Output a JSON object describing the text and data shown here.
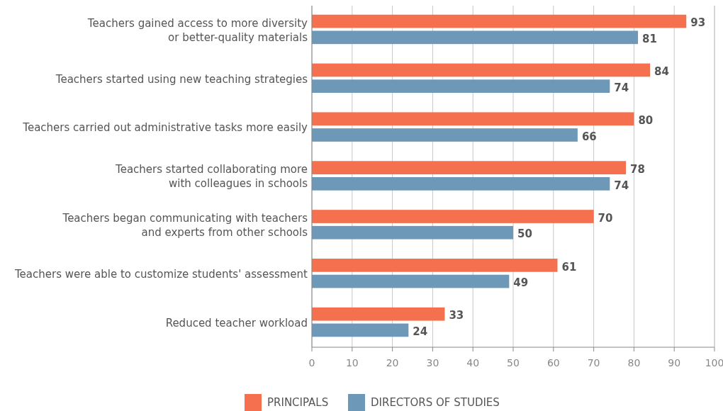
{
  "chart_data": {
    "type": "bar",
    "orientation": "horizontal",
    "categories": [
      "Teachers gained access to more diversity\nor better-quality materials",
      "Teachers started using new teaching strategies",
      "Teachers carried out administrative tasks more easily",
      "Teachers started collaborating more\nwith colleagues in schools",
      "Teachers began communicating with teachers\nand experts from other schools",
      "Teachers were able to customize students' assessment",
      "Reduced teacher workload"
    ],
    "series": [
      {
        "name": "PRINCIPALS",
        "color": "#f4704f",
        "values": [
          93,
          84,
          80,
          78,
          70,
          61,
          33
        ]
      },
      {
        "name": "DIRECTORS OF STUDIES",
        "color": "#6e98b8",
        "values": [
          81,
          74,
          66,
          74,
          50,
          49,
          24
        ]
      }
    ],
    "xlim": [
      0,
      100
    ],
    "xticks": [
      0,
      10,
      20,
      30,
      40,
      50,
      60,
      70,
      80,
      90,
      100
    ],
    "grid": "x",
    "legend": "bottom",
    "data_labels": true
  }
}
